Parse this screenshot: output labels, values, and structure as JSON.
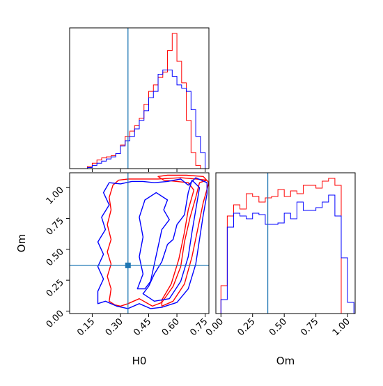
{
  "chart_data": {
    "type": "corner",
    "parameters": [
      "H0",
      "Om"
    ],
    "truths": {
      "H0": 0.34,
      "Om": 0.37
    },
    "colors": {
      "red_series": "#ff0000",
      "blue_series": "#0000ff",
      "truth": "#1f77b4",
      "axes": "#000000"
    },
    "panels": [
      {
        "id": "hist-H0",
        "type": "histogram",
        "xlim": [
          0.03,
          0.77
        ],
        "xticks": [
          0.15,
          0.3,
          0.45,
          0.6,
          0.75
        ],
        "series": [
          {
            "color": "red",
            "bin_edges": [
              0.1,
              0.125,
              0.15,
              0.175,
              0.2,
              0.225,
              0.25,
              0.275,
              0.3,
              0.325,
              0.35,
              0.375,
              0.4,
              0.425,
              0.45,
              0.475,
              0.5,
              0.525,
              0.55,
              0.575,
              0.6,
              0.625,
              0.65,
              0.675,
              0.7,
              0.725,
              0.75
            ],
            "values": [
              0,
              2,
              5,
              8,
              10,
              11,
              12,
              14,
              22,
              30,
              35,
              40,
              47,
              60,
              72,
              78,
              85,
              90,
              110,
              126,
              100,
              80,
              45,
              15,
              3,
              0
            ]
          },
          {
            "color": "blue",
            "bin_edges": [
              0.1,
              0.125,
              0.15,
              0.175,
              0.2,
              0.225,
              0.25,
              0.275,
              0.3,
              0.325,
              0.35,
              0.375,
              0.4,
              0.425,
              0.45,
              0.475,
              0.5,
              0.525,
              0.55,
              0.575,
              0.6,
              0.625,
              0.65,
              0.675,
              0.7,
              0.725,
              0.75
            ],
            "values": [
              0,
              1,
              3,
              5,
              7,
              9,
              11,
              14,
              21,
              26,
              30,
              37,
              45,
              54,
              66,
              72,
              88,
              92,
              92,
              86,
              78,
              75,
              72,
              55,
              30,
              15
            ]
          }
        ]
      },
      {
        "id": "contour-H0-Om",
        "type": "contour",
        "xlim": [
          0.03,
          0.77
        ],
        "ylim": [
          -0.02,
          1.12
        ],
        "xticks": [
          0.15,
          0.3,
          0.45,
          0.6,
          0.75
        ],
        "yticks": [
          0.0,
          0.25,
          0.5,
          0.75,
          1.0
        ],
        "xlabel": "H0",
        "ylabel": "Om",
        "contours": [
          {
            "color": "red",
            "points": [
              [
                0.27,
                0.05
              ],
              [
                0.3,
                0.04
              ],
              [
                0.34,
                0.06
              ],
              [
                0.4,
                0.1
              ],
              [
                0.47,
                0.04
              ],
              [
                0.52,
                0.07
              ],
              [
                0.58,
                0.2
              ],
              [
                0.62,
                0.36
              ],
              [
                0.64,
                0.56
              ],
              [
                0.67,
                0.76
              ],
              [
                0.7,
                0.92
              ],
              [
                0.72,
                1.04
              ],
              [
                0.76,
                1.06
              ],
              [
                0.7,
                1.07
              ],
              [
                0.62,
                1.08
              ],
              [
                0.5,
                1.07
              ],
              [
                0.4,
                1.07
              ],
              [
                0.34,
                1.07
              ],
              [
                0.29,
                1.06
              ],
              [
                0.26,
                1.02
              ],
              [
                0.24,
                0.92
              ],
              [
                0.25,
                0.82
              ],
              [
                0.23,
                0.7
              ],
              [
                0.25,
                0.58
              ],
              [
                0.23,
                0.48
              ],
              [
                0.25,
                0.38
              ],
              [
                0.23,
                0.28
              ],
              [
                0.25,
                0.18
              ],
              [
                0.24,
                0.08
              ]
            ]
          },
          {
            "color": "red",
            "points": [
              [
                0.52,
                0.04
              ],
              [
                0.58,
                0.08
              ],
              [
                0.64,
                0.22
              ],
              [
                0.68,
                0.44
              ],
              [
                0.71,
                0.66
              ],
              [
                0.74,
                0.88
              ],
              [
                0.77,
                1.04
              ],
              [
                0.74,
                1.09
              ],
              [
                0.65,
                1.1
              ],
              [
                0.55,
                1.1
              ],
              [
                0.5,
                1.09
              ],
              [
                0.53,
                1.06
              ],
              [
                0.6,
                1.05
              ],
              [
                0.66,
                1.04
              ],
              [
                0.69,
                0.98
              ],
              [
                0.66,
                0.82
              ],
              [
                0.64,
                0.64
              ],
              [
                0.61,
                0.42
              ],
              [
                0.57,
                0.22
              ],
              [
                0.52,
                0.09
              ]
            ]
          },
          {
            "color": "blue",
            "points": [
              [
                0.18,
                0.06
              ],
              [
                0.22,
                0.08
              ],
              [
                0.28,
                0.04
              ],
              [
                0.34,
                0.02
              ],
              [
                0.4,
                0.06
              ],
              [
                0.46,
                0.02
              ],
              [
                0.52,
                0.03
              ],
              [
                0.6,
                0.07
              ],
              [
                0.66,
                0.18
              ],
              [
                0.7,
                0.38
              ],
              [
                0.72,
                0.58
              ],
              [
                0.74,
                0.78
              ],
              [
                0.76,
                0.95
              ],
              [
                0.76,
                1.04
              ],
              [
                0.7,
                1.08
              ],
              [
                0.66,
                1.02
              ],
              [
                0.62,
                1.07
              ],
              [
                0.55,
                1.05
              ],
              [
                0.48,
                1.04
              ],
              [
                0.42,
                1.05
              ],
              [
                0.36,
                1.05
              ],
              [
                0.3,
                1.03
              ],
              [
                0.24,
                1.04
              ],
              [
                0.21,
                0.96
              ],
              [
                0.24,
                0.86
              ],
              [
                0.2,
                0.76
              ],
              [
                0.22,
                0.66
              ],
              [
                0.18,
                0.56
              ],
              [
                0.21,
                0.46
              ],
              [
                0.18,
                0.36
              ],
              [
                0.21,
                0.26
              ],
              [
                0.18,
                0.16
              ]
            ]
          },
          {
            "color": "blue",
            "points": [
              [
                0.42,
                0.14
              ],
              [
                0.48,
                0.08
              ],
              [
                0.56,
                0.1
              ],
              [
                0.62,
                0.24
              ],
              [
                0.66,
                0.44
              ],
              [
                0.68,
                0.64
              ],
              [
                0.7,
                0.82
              ],
              [
                0.72,
                1.0
              ],
              [
                0.68,
                1.06
              ],
              [
                0.66,
                0.96
              ],
              [
                0.64,
                0.78
              ],
              [
                0.6,
                0.7
              ],
              [
                0.58,
                0.58
              ],
              [
                0.55,
                0.54
              ],
              [
                0.52,
                0.4
              ],
              [
                0.48,
                0.3
              ],
              [
                0.45,
                0.2
              ]
            ]
          },
          {
            "color": "blue",
            "points": [
              [
                0.39,
                0.18
              ],
              [
                0.42,
                0.3
              ],
              [
                0.4,
                0.44
              ],
              [
                0.42,
                0.6
              ],
              [
                0.4,
                0.76
              ],
              [
                0.43,
                0.9
              ],
              [
                0.49,
                0.96
              ],
              [
                0.55,
                0.9
              ],
              [
                0.53,
                0.82
              ],
              [
                0.56,
                0.74
              ],
              [
                0.52,
                0.66
              ],
              [
                0.5,
                0.52
              ],
              [
                0.48,
                0.38
              ],
              [
                0.46,
                0.24
              ],
              [
                0.43,
                0.18
              ]
            ]
          }
        ]
      },
      {
        "id": "hist-Om",
        "type": "histogram",
        "xlim": [
          -0.04,
          1.06
        ],
        "xticks": [
          0.0,
          0.25,
          0.5,
          0.75,
          1.0
        ],
        "xlabel": "Om",
        "series": [
          {
            "color": "red",
            "bin_edges": [
              0.0,
              0.05,
              0.1,
              0.15,
              0.2,
              0.25,
              0.3,
              0.35,
              0.4,
              0.45,
              0.5,
              0.55,
              0.6,
              0.65,
              0.7,
              0.75,
              0.8,
              0.85,
              0.9,
              0.95,
              1.0
            ],
            "values": [
              20,
              70,
              78,
              75,
              86,
              84,
              80,
              83,
              84,
              89,
              84,
              88,
              86,
              92,
              92,
              90,
              95,
              97,
              92,
              0
            ]
          },
          {
            "color": "blue",
            "bin_edges": [
              0.0,
              0.05,
              0.1,
              0.15,
              0.2,
              0.25,
              0.3,
              0.35,
              0.4,
              0.45,
              0.5,
              0.55,
              0.6,
              0.65,
              0.7,
              0.75,
              0.8,
              0.85,
              0.9,
              0.95,
              1.0,
              1.05
            ],
            "values": [
              10,
              62,
              72,
              70,
              68,
              72,
              71,
              64,
              64,
              65,
              72,
              68,
              80,
              74,
              74,
              76,
              80,
              85,
              70,
              40,
              8
            ]
          }
        ]
      }
    ]
  }
}
